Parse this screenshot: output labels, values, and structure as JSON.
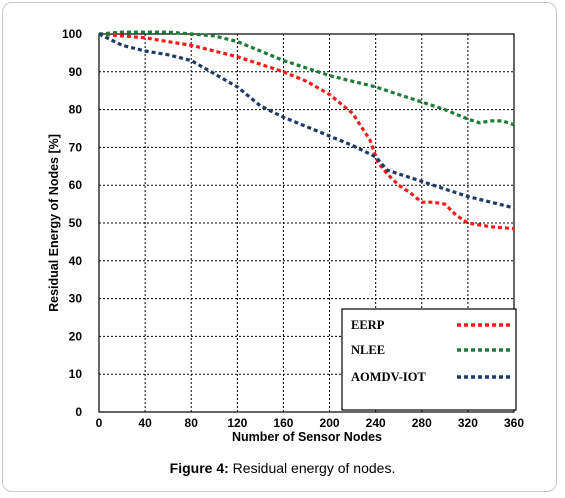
{
  "caption": {
    "label": "Figure 4:",
    "text": " Residual energy of nodes."
  },
  "chart_data": {
    "type": "line",
    "title": "",
    "xlabel": "Number of Sensor Nodes",
    "ylabel": "Residual Energy of Nodes [%]",
    "xlim": [
      0,
      360
    ],
    "ylim": [
      0,
      100
    ],
    "xticks": [
      0,
      40,
      80,
      120,
      160,
      200,
      240,
      280,
      320,
      360
    ],
    "yticks": [
      0,
      10,
      20,
      30,
      40,
      50,
      60,
      70,
      80,
      90,
      100
    ],
    "grid": true,
    "legend_position": "bottom-right",
    "series": [
      {
        "name": "EERP",
        "color": "#ff1a1a",
        "x": [
          0,
          20,
          40,
          60,
          80,
          100,
          120,
          140,
          160,
          180,
          200,
          220,
          235,
          242,
          250,
          260,
          270,
          280,
          290,
          300,
          310,
          320,
          340,
          360
        ],
        "y": [
          100,
          99.5,
          99,
          98,
          97,
          95.5,
          94,
          92,
          90,
          87.5,
          84,
          79,
          72,
          66,
          63,
          60,
          58,
          55.5,
          55.5,
          55,
          52,
          50,
          49,
          48.5
        ]
      },
      {
        "name": "NLEE",
        "color": "#1f7a3a",
        "x": [
          0,
          20,
          40,
          60,
          80,
          100,
          120,
          140,
          160,
          180,
          200,
          220,
          240,
          260,
          280,
          300,
          320,
          330,
          340,
          350,
          360
        ],
        "y": [
          100,
          100.5,
          100.5,
          100.5,
          100,
          99.5,
          98,
          95.5,
          93,
          91,
          89,
          87.5,
          86,
          84,
          82,
          80,
          77.5,
          76.5,
          77,
          77,
          76
        ]
      },
      {
        "name": "AOMDV-IOT",
        "color": "#1f3a66",
        "x": [
          0,
          20,
          40,
          60,
          80,
          100,
          120,
          140,
          160,
          180,
          200,
          220,
          240,
          250,
          260,
          280,
          300,
          320,
          340,
          360
        ],
        "y": [
          100,
          97,
          95.5,
          94.5,
          93,
          89.5,
          86,
          81,
          78,
          75.5,
          73,
          70.5,
          67.5,
          64,
          63,
          61,
          59,
          57,
          55.5,
          54
        ]
      }
    ]
  }
}
